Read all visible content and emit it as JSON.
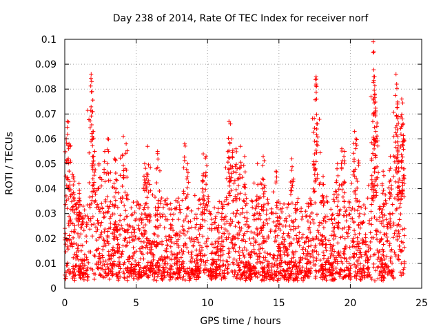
{
  "chart_data": {
    "type": "scatter",
    "title": "Day 238 of 2014, Rate Of TEC Index for receiver norf",
    "xlabel": "GPS time / hours",
    "ylabel": "ROTI / TECUs",
    "xlim": [
      0,
      25
    ],
    "ylim": [
      0,
      0.1
    ],
    "xticks": [
      "0",
      "5",
      "10",
      "15",
      "20",
      "25"
    ],
    "yticks": [
      "0",
      "0.01",
      "0.02",
      "0.03",
      "0.04",
      "0.05",
      "0.06",
      "0.07",
      "0.08",
      "0.09",
      "0.1"
    ],
    "grid": true,
    "marker": "+",
    "series_color": "#ff0000",
    "dense_band": {
      "x_range": [
        0,
        23.8
      ],
      "typical_range": [
        0.003,
        0.03
      ]
    },
    "spikes": [
      {
        "x": 0.1,
        "y": 0.06
      },
      {
        "x": 0.2,
        "y": 0.067
      },
      {
        "x": 0.3,
        "y": 0.058
      },
      {
        "x": 0.6,
        "y": 0.045
      },
      {
        "x": 1.0,
        "y": 0.042
      },
      {
        "x": 1.85,
        "y": 0.086
      },
      {
        "x": 1.88,
        "y": 0.083
      },
      {
        "x": 1.9,
        "y": 0.079
      },
      {
        "x": 1.95,
        "y": 0.071
      },
      {
        "x": 2.0,
        "y": 0.063
      },
      {
        "x": 2.1,
        "y": 0.055
      },
      {
        "x": 2.4,
        "y": 0.05
      },
      {
        "x": 2.8,
        "y": 0.055
      },
      {
        "x": 3.0,
        "y": 0.06
      },
      {
        "x": 3.5,
        "y": 0.052
      },
      {
        "x": 4.1,
        "y": 0.061
      },
      {
        "x": 4.3,
        "y": 0.058
      },
      {
        "x": 5.8,
        "y": 0.057
      },
      {
        "x": 5.6,
        "y": 0.05
      },
      {
        "x": 6.5,
        "y": 0.055
      },
      {
        "x": 8.4,
        "y": 0.058
      },
      {
        "x": 8.6,
        "y": 0.05
      },
      {
        "x": 9.7,
        "y": 0.054
      },
      {
        "x": 9.9,
        "y": 0.053
      },
      {
        "x": 11.5,
        "y": 0.067
      },
      {
        "x": 11.6,
        "y": 0.066
      },
      {
        "x": 11.7,
        "y": 0.06
      },
      {
        "x": 12.0,
        "y": 0.056
      },
      {
        "x": 12.3,
        "y": 0.057
      },
      {
        "x": 12.6,
        "y": 0.053
      },
      {
        "x": 13.5,
        "y": 0.05
      },
      {
        "x": 13.9,
        "y": 0.053
      },
      {
        "x": 14.8,
        "y": 0.047
      },
      {
        "x": 15.9,
        "y": 0.052
      },
      {
        "x": 17.6,
        "y": 0.085
      },
      {
        "x": 17.62,
        "y": 0.084
      },
      {
        "x": 17.65,
        "y": 0.064
      },
      {
        "x": 17.5,
        "y": 0.054
      },
      {
        "x": 18.1,
        "y": 0.045
      },
      {
        "x": 19.1,
        "y": 0.05
      },
      {
        "x": 19.4,
        "y": 0.056
      },
      {
        "x": 19.6,
        "y": 0.055
      },
      {
        "x": 20.3,
        "y": 0.063
      },
      {
        "x": 20.4,
        "y": 0.06
      },
      {
        "x": 21.5,
        "y": 0.052
      },
      {
        "x": 21.6,
        "y": 0.099
      },
      {
        "x": 21.65,
        "y": 0.095
      },
      {
        "x": 21.7,
        "y": 0.085
      },
      {
        "x": 21.72,
        "y": 0.078
      },
      {
        "x": 21.75,
        "y": 0.07
      },
      {
        "x": 21.78,
        "y": 0.063
      },
      {
        "x": 22.3,
        "y": 0.047
      },
      {
        "x": 22.8,
        "y": 0.053
      },
      {
        "x": 23.2,
        "y": 0.086
      },
      {
        "x": 23.25,
        "y": 0.082
      },
      {
        "x": 23.3,
        "y": 0.074
      },
      {
        "x": 23.35,
        "y": 0.069
      },
      {
        "x": 23.6,
        "y": 0.076
      },
      {
        "x": 23.65,
        "y": 0.068
      },
      {
        "x": 23.7,
        "y": 0.066
      },
      {
        "x": 23.72,
        "y": 0.06
      },
      {
        "x": 23.4,
        "y": 0.047
      }
    ]
  }
}
